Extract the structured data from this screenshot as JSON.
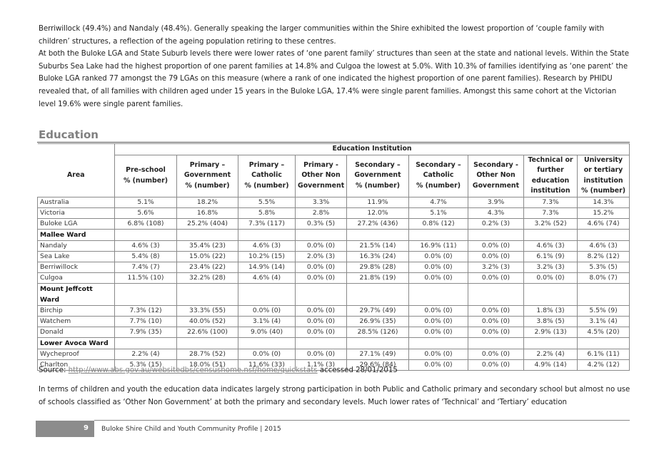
{
  "intro_paragraphs": [
    "Berriwillock (49.4%) and Nandaly (48.4%). Generally speaking the larger communities within the Shire exhibited the lowest proportion of ‘couple family with children’ structures, a reflection of the ageing population retiring to these centres.",
    "At both the Buloke LGA and State Suburb levels there were lower rates of ‘one parent family’ structures than seen at the state and national levels. Within the State Suburbs Sea Lake had the highest proportion of one parent families at 14.8% and Culgoa the lowest at 5.0%. With 10.3% of families identifying as ‘one parent’ the Buloke LGA ranked 77 amongst the 79 LGAs on this measure (where a rank of one indicated the highest proportion of one parent families). Research by PHIDU revealed that, of all families with children aged under 15 years in the Buloke LGA, 17.4% were single parent families. Amongst this same cohort at the Victorian level 19.6% were single parent families."
  ],
  "section_heading": "Education",
  "table": {
    "group_header": "Education Institution",
    "area_header": "Area",
    "columns": [
      "Pre-school\n% (number)",
      "Primary –\nGovernment\n% (number)",
      "Primary –\nCatholic\n% (number)",
      "Primary -\nOther Non\nGovernment",
      "Secondary –\nGovernment\n% (number)",
      "Secondary –\nCatholic\n% (number)",
      "Secondary -\nOther Non\nGovernment",
      "Technical or\nfurther\neducation\ninstitution",
      "University\nor tertiary\ninstitution\n% (number)"
    ],
    "rows": [
      {
        "area": "Australia",
        "values": [
          "5.1%",
          "18.2%",
          "5.5%",
          "3.3%",
          "11.9%",
          "4.7%",
          "3.9%",
          "7.3%",
          "14.3%"
        ]
      },
      {
        "area": "Victoria",
        "values": [
          "5.6%",
          "16.8%",
          "5.8%",
          "2.8%",
          "12.0%",
          "5.1%",
          "4.3%",
          "7.3%",
          "15.2%"
        ]
      },
      {
        "area": "Buloke LGA",
        "values": [
          "6.8% (108)",
          "25.2% (404)",
          "7.3% (117)",
          "0.3% (5)",
          "27.2% (436)",
          "0.8% (12)",
          "0.2% (3)",
          "3.2% (52)",
          "4.6% (74)"
        ]
      },
      {
        "area": "Mallee Ward",
        "group": true
      },
      {
        "area": "Nandaly",
        "values": [
          "4.6% (3)",
          "35.4% (23)",
          "4.6% (3)",
          "0.0% (0)",
          "21.5% (14)",
          "16.9% (11)",
          "0.0% (0)",
          "4.6% (3)",
          "4.6% (3)"
        ]
      },
      {
        "area": "Sea Lake",
        "values": [
          "5.4% (8)",
          "15.0% (22)",
          "10.2% (15)",
          "2.0% (3)",
          "16.3% (24)",
          "0.0% (0)",
          "0.0% (0)",
          "6.1% (9)",
          "8.2% (12)"
        ]
      },
      {
        "area": "Berriwillock",
        "values": [
          "7.4% (7)",
          "23.4% (22)",
          "14.9% (14)",
          "0.0% (0)",
          "29.8% (28)",
          "0.0% (0)",
          "3.2% (3)",
          "3.2% (3)",
          "5.3% (5)"
        ]
      },
      {
        "area": "Culgoa",
        "values": [
          "11.5% (10)",
          "32.2% (28)",
          "4.6% (4)",
          "0.0% (0)",
          "21.8% (19)",
          "0.0% (0)",
          "0.0% (0)",
          "0.0% (0)",
          "8.0% (7)"
        ]
      },
      {
        "area": "Mount Jeffcott Ward",
        "group": true
      },
      {
        "area": "Birchip",
        "values": [
          "7.3% (12)",
          "33.3% (55)",
          "0.0% (0)",
          "0.0% (0)",
          "29.7% (49)",
          "0.0% (0)",
          "0.0% (0)",
          "1.8% (3)",
          "5.5% (9)"
        ]
      },
      {
        "area": "Watchem",
        "values": [
          "7.7% (10)",
          "40.0% (52)",
          "3.1% (4)",
          "0.0% (0)",
          "26.9% (35)",
          "0.0% (0)",
          "0.0% (0)",
          "3.8% (5)",
          "3.1% (4)"
        ]
      },
      {
        "area": "Donald",
        "values": [
          "7.9% (35)",
          "22.6% (100)",
          "9.0% (40)",
          "0.0% (0)",
          "28.5% (126)",
          "0.0% (0)",
          "0.0% (0)",
          "2.9% (13)",
          "4.5% (20)"
        ]
      },
      {
        "area": "Lower Avoca Ward",
        "group": true
      },
      {
        "area": "Wycheproof",
        "values": [
          "2.2% (4)",
          "28.7% (52)",
          "0.0% (0)",
          "0.0% (0)",
          "27.1% (49)",
          "0.0% (0)",
          "0.0% (0)",
          "2.2% (4)",
          "6.1% (11)"
        ]
      },
      {
        "area": "Charlton",
        "values": [
          "5.3% (15)",
          "18.0% (51)",
          "11.6% (33)",
          "1.1% (3)",
          "29.6% (84)",
          "0.0% (0)",
          "0.0% (0)",
          "4.9% (14)",
          "4.2% (12)"
        ]
      }
    ]
  },
  "source": {
    "label": "Source: ",
    "url": "http://www.abs.gov.au/websitedbs/censushome.nsf/home/quickstats",
    "accessed": " accessed 28/01/2015"
  },
  "closing_paragraph": "In terms of children and youth the education data indicates largely strong participation in both Public and Catholic primary and secondary school but almost no use of schools classified as ‘Other Non Government’ at both the primary and secondary levels. Much lower rates of ‘Technical’ and ‘Tertiary’ education",
  "footer": {
    "page_number": "9",
    "title": "Buloke Shire Child and Youth Community Profile | 2015"
  },
  "colors": {
    "heading": "#808080",
    "footer_block": "#8c8c8c",
    "link": "#888888"
  }
}
